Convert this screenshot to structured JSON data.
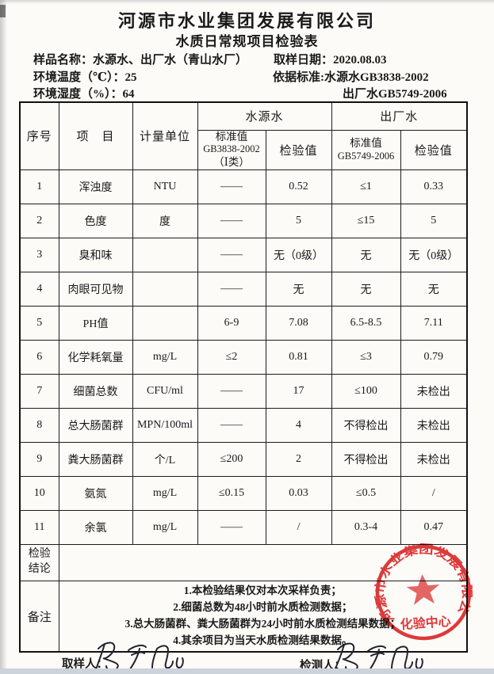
{
  "page": {
    "company": "河源市水业集团发展有限公司",
    "title": "水质日常规项目检验表",
    "sample_name_label": "样品名称：",
    "sample_name": "水源水、出厂水（青山水厂）",
    "sampling_date_label": "取样日期：",
    "sampling_date": "2020.08.03",
    "env_temp_label": "环境温度（℃）：",
    "env_temp": "25",
    "standard_label": "依据标准:",
    "standard_source": "水源水GB3838-2002",
    "standard_factory": "出厂水GB5749-2006",
    "env_humidity_label": "环境湿度（%）：",
    "env_humidity": "64"
  },
  "table": {
    "headers": {
      "no": "序号",
      "item": "项　目",
      "unit": "计量单位",
      "source_water": "水源水",
      "factory_water": "出厂水",
      "std1_line1": "标准值",
      "std1_line2": "GB3838-2002",
      "std1_line3": "（Ⅰ类）",
      "check1": "检验值",
      "std2_line1": "标准值",
      "std2_line2": "GB5749-2006",
      "check2": "检验值"
    },
    "rows": [
      {
        "no": "1",
        "item": "浑浊度",
        "unit": "NTU",
        "std1": "——",
        "val1": "0.52",
        "std2": "≤1",
        "val2": "0.33"
      },
      {
        "no": "2",
        "item": "色度",
        "unit": "度",
        "std1": "——",
        "val1": "5",
        "std2": "≤15",
        "val2": "5"
      },
      {
        "no": "3",
        "item": "臭和味",
        "unit": "",
        "std1": "——",
        "val1": "无（0级）",
        "std2": "无",
        "val2": "无（0级）"
      },
      {
        "no": "4",
        "item": "肉眼可见物",
        "unit": "",
        "std1": "——",
        "val1": "无",
        "std2": "无",
        "val2": "无"
      },
      {
        "no": "5",
        "item": "PH值",
        "unit": "",
        "std1": "6-9",
        "val1": "7.08",
        "std2": "6.5-8.5",
        "val2": "7.11"
      },
      {
        "no": "6",
        "item": "化学耗氧量",
        "unit": "mg/L",
        "std1": "≤2",
        "val1": "0.81",
        "std2": "≤3",
        "val2": "0.79"
      },
      {
        "no": "7",
        "item": "细菌总数",
        "unit": "CFU/ml",
        "std1": "——",
        "val1": "17",
        "std2": "≤100",
        "val2": "未检出"
      },
      {
        "no": "8",
        "item": "总大肠菌群",
        "unit": "MPN/100ml",
        "std1": "——",
        "val1": "4",
        "std2": "不得检出",
        "val2": "未检出"
      },
      {
        "no": "9",
        "item": "粪大肠菌群",
        "unit": "个/L",
        "std1": "≤200",
        "val1": "2",
        "std2": "不得检出",
        "val2": "未检出"
      },
      {
        "no": "10",
        "item": "氨氮",
        "unit": "mg/L",
        "std1": "≤0.15",
        "val1": "0.03",
        "std2": "≤0.5",
        "val2": "/"
      },
      {
        "no": "11",
        "item": "余氯",
        "unit": "mg/L",
        "std1": "——",
        "val1": "/",
        "std2": "0.3-4",
        "val2": "0.47"
      }
    ],
    "conclusion_label": "检验\n结论",
    "conclusion_value": "",
    "remarks_label": "备注",
    "remarks": [
      "1.本检验结果仅对本次采样负责；",
      "2.细菌总数为48小时前水质检测数据；",
      "3.总大肠菌群、粪大肠菌群为24小时前水质检测结果数据；",
      "4.其余项目为当天水质检测结果数据。"
    ]
  },
  "footer": {
    "sampler_label": "取样人：",
    "tester_label": "检测人："
  },
  "stamp": {
    "company_arc": "河源市水业集团发展有限公司",
    "center_text": "化验中心",
    "color": "#dd2a2a"
  }
}
